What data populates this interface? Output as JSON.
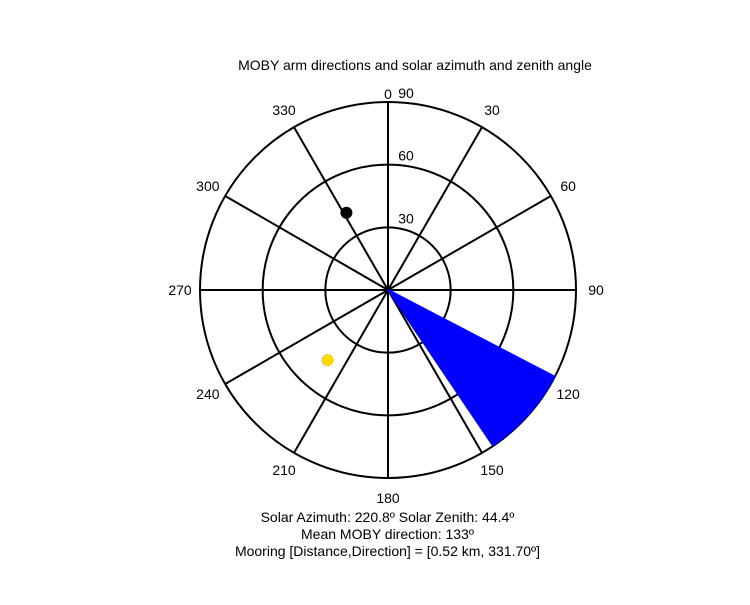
{
  "chart_data": {
    "type": "polar",
    "title": "MOBY arm directions and solar azimuth and zenith angle",
    "angular_axis": {
      "direction": "clockwise",
      "zero_at": "top",
      "tick_labels": [
        "0",
        "30",
        "60",
        "90",
        "120",
        "150",
        "180",
        "210",
        "240",
        "270",
        "300",
        "330"
      ]
    },
    "radial_axis": {
      "quantity": "zenith angle",
      "range": [
        0,
        90
      ],
      "rings": [
        30,
        60,
        90
      ],
      "tick_labels": [
        "30",
        "60",
        "90"
      ]
    },
    "moby_arm_directions": {
      "color": "#0000ff",
      "radius": 90,
      "azimuths": [
        117.5,
        118,
        118.5,
        119,
        119.5,
        120,
        120.5,
        121,
        121.5,
        122,
        122.5,
        123,
        123.5,
        124,
        124.5,
        125,
        125.5,
        126,
        126.5,
        127,
        127.5,
        128,
        128.5,
        129,
        129.5,
        130,
        130.5,
        131,
        131.5,
        132,
        132.5,
        133,
        133.5,
        134,
        134.5,
        135,
        135.5,
        136,
        136.5,
        137,
        137.5,
        138,
        138.5,
        139,
        139.5,
        140,
        140.5,
        141,
        141.5,
        142,
        142.5,
        143,
        143.5,
        144,
        144.5,
        145,
        145.5,
        146
      ]
    },
    "sun": {
      "azimuth": 220.8,
      "zenith": 44.4,
      "color": "#ffdd00"
    },
    "mooring": {
      "azimuth": 331.7,
      "zenith": 42,
      "color": "#000000"
    }
  },
  "caption": {
    "solar_line": "Solar Azimuth: 220.8º   Solar Zenith: 44.4º",
    "moby_line": "Mean MOBY direction: 133º",
    "mooring_line": "Mooring [Distance,Direction] = [0.52 km, 331.70º]"
  }
}
